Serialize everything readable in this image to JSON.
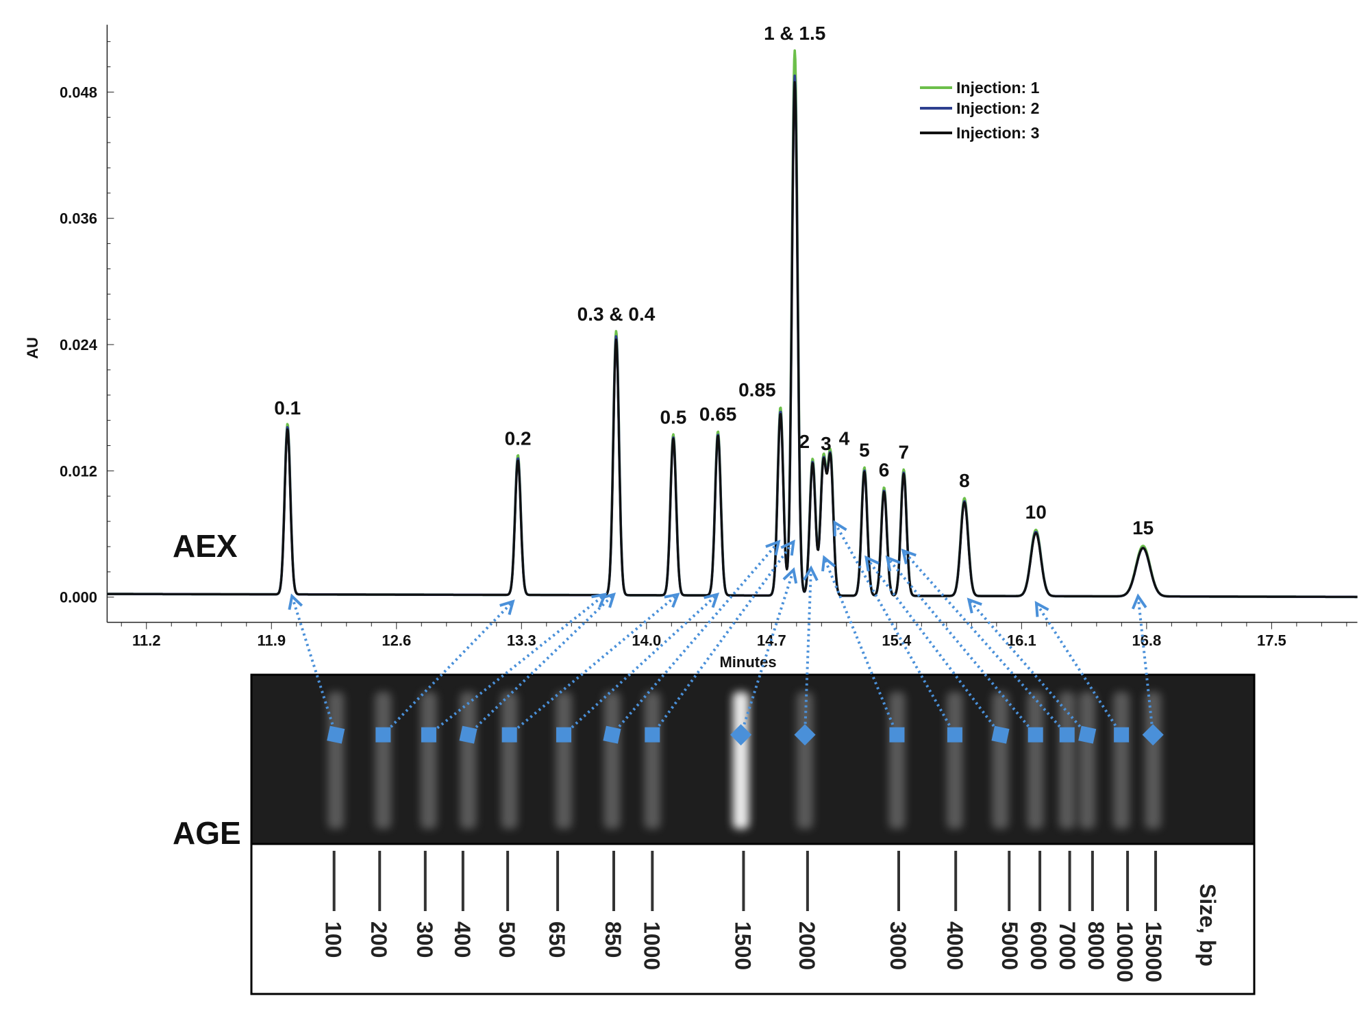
{
  "chart_data": {
    "type": "line",
    "title": "",
    "xlabel": "Minutes",
    "ylabel": "AU",
    "xlim": [
      10.98,
      17.98
    ],
    "ylim": [
      -0.0024,
      0.0544
    ],
    "x_ticks": [
      "11.2",
      "11.9",
      "12.6",
      "13.3",
      "14.0",
      "14.7",
      "15.4",
      "16.1",
      "16.8",
      "17.5"
    ],
    "y_ticks": [
      "0.000",
      "0.012",
      "0.024",
      "0.036",
      "0.048"
    ],
    "legend_position": "top-right",
    "series": [
      {
        "name": "Injection: 1",
        "color": "#6cbf4a"
      },
      {
        "name": "Injection: 2",
        "color": "#2e3f8f"
      },
      {
        "name": "Injection: 3",
        "color": "#111111"
      }
    ],
    "peaks": [
      {
        "label": "0.1",
        "retention_time": 11.99,
        "heights": [
          0.0162,
          0.0159,
          0.0157
        ]
      },
      {
        "label": "0.2",
        "retention_time": 13.28,
        "heights": [
          0.0133,
          0.013,
          0.0128
        ]
      },
      {
        "label": "0.3 & 0.4",
        "retention_time": 13.83,
        "heights": [
          0.0251,
          0.0246,
          0.0243
        ]
      },
      {
        "label": "0.5",
        "retention_time": 14.15,
        "heights": [
          0.0153,
          0.015,
          0.0149
        ]
      },
      {
        "label": "0.65",
        "retention_time": 14.4,
        "heights": [
          0.0156,
          0.0153,
          0.0152
        ]
      },
      {
        "label": "0.85",
        "retention_time": 14.75,
        "heights": [
          0.0179,
          0.0175,
          0.0173
        ]
      },
      {
        "label": "1 & 1.5",
        "retention_time": 14.83,
        "heights": [
          0.0518,
          0.0494,
          0.0488
        ]
      },
      {
        "label": "2",
        "retention_time": 14.93,
        "heights": [
          0.013,
          0.0127,
          0.0126
        ]
      },
      {
        "label": "3",
        "retention_time": 14.99,
        "heights": [
          0.0128,
          0.0125,
          0.0124
        ]
      },
      {
        "label": "4",
        "retention_time": 15.03,
        "heights": [
          0.0133,
          0.013,
          0.0129
        ]
      },
      {
        "label": "5",
        "retention_time": 15.22,
        "heights": [
          0.0122,
          0.0119,
          0.0118
        ]
      },
      {
        "label": "6",
        "retention_time": 15.33,
        "heights": [
          0.0103,
          0.01,
          0.0099
        ]
      },
      {
        "label": "7",
        "retention_time": 15.44,
        "heights": [
          0.012,
          0.0117,
          0.0116
        ]
      },
      {
        "label": "8",
        "retention_time": 15.78,
        "heights": [
          0.0093,
          0.009,
          0.0089
        ]
      },
      {
        "label": "10",
        "retention_time": 16.18,
        "heights": [
          0.0063,
          0.0061,
          0.006
        ]
      },
      {
        "label": "15",
        "retention_time": 16.78,
        "heights": [
          0.0048,
          0.0046,
          0.0046
        ]
      }
    ]
  },
  "panels": {
    "aex": "AEX",
    "age": "AGE"
  },
  "gel": {
    "axis_label": "Size, bp",
    "arrow_color": "#4a90d9",
    "lanes": [
      {
        "size": "100",
        "peak": "0.1"
      },
      {
        "size": "200",
        "peak": "0.2"
      },
      {
        "size": "300",
        "peak": "0.3 & 0.4"
      },
      {
        "size": "400",
        "peak": "0.3 & 0.4"
      },
      {
        "size": "500",
        "peak": "0.5"
      },
      {
        "size": "650",
        "peak": "0.65"
      },
      {
        "size": "850",
        "peak": "0.85"
      },
      {
        "size": "1000",
        "peak": "1 & 1.5"
      },
      {
        "size": "1500",
        "peak": "1 & 1.5"
      },
      {
        "size": "2000",
        "peak": "2"
      },
      {
        "size": "3000",
        "peak": "3"
      },
      {
        "size": "4000",
        "peak": "4"
      },
      {
        "size": "5000",
        "peak": "5"
      },
      {
        "size": "6000",
        "peak": "6"
      },
      {
        "size": "7000",
        "peak": "7"
      },
      {
        "size": "8000",
        "peak": "8"
      },
      {
        "size": "10000",
        "peak": "10"
      },
      {
        "size": "15000",
        "peak": "15"
      }
    ]
  }
}
